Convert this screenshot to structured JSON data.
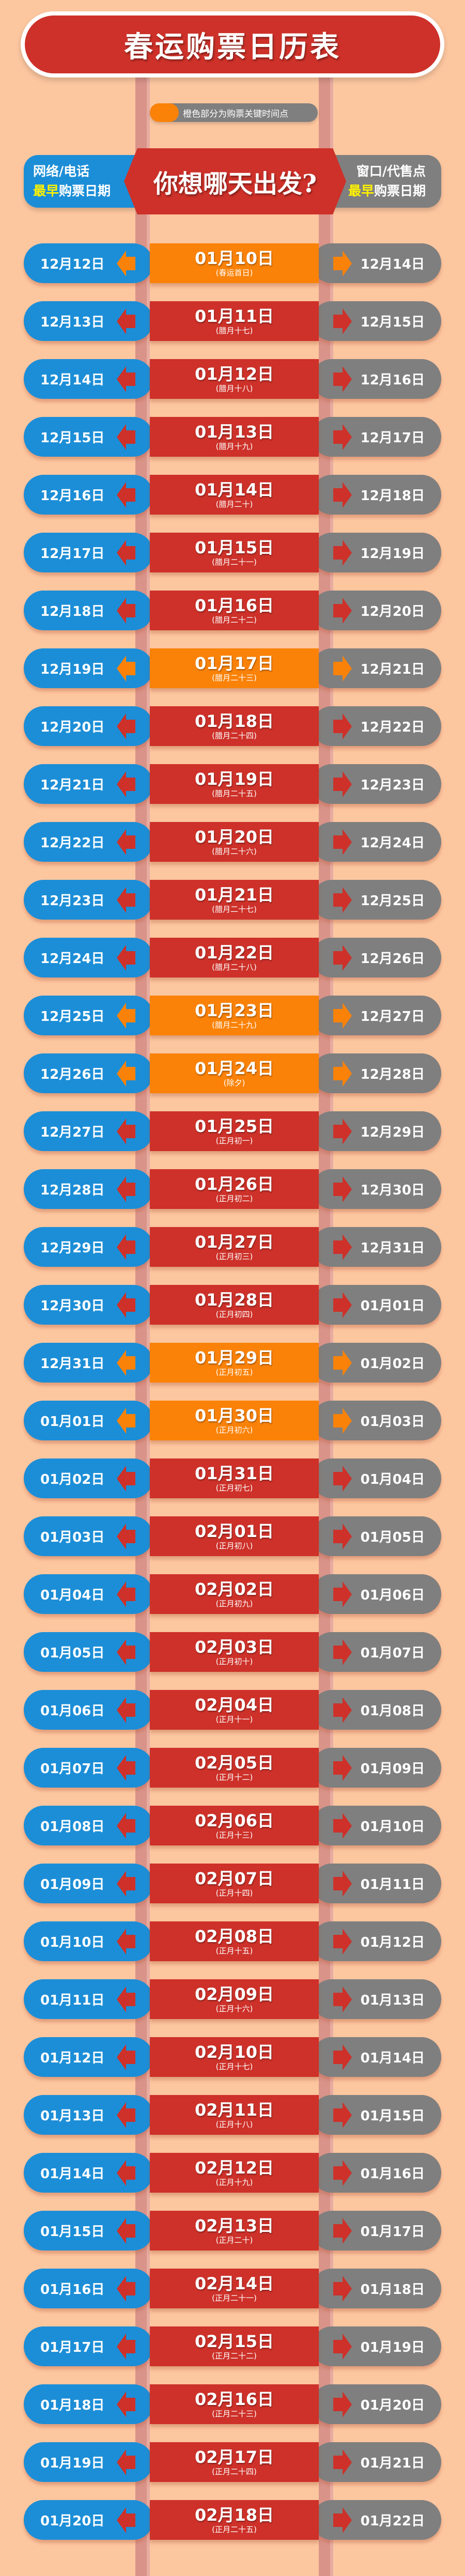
{
  "title": "春运购票日历表",
  "legend": {
    "text": "橙色部分为购票关键时间点",
    "color": "#fa8208"
  },
  "header": {
    "left_line1": "网络/电话",
    "left_line2_highlight": "最早",
    "left_line2_rest": "购票日期",
    "center": "你想哪天出发?",
    "right_line1": "窗口/代售点",
    "right_line2_highlight": "最早",
    "right_line2_rest": "购票日期"
  },
  "colors": {
    "background": "#fcc69f",
    "online": "#1c8ed7",
    "window": "#7f7f7f",
    "normal": "#cd3129",
    "key": "#fa8208"
  },
  "rows": [
    {
      "online": "12月12日",
      "date": "01月10日",
      "lunar": "(春运首日)",
      "window": "12月14日",
      "key": true
    },
    {
      "online": "12月13日",
      "date": "01月11日",
      "lunar": "(腊月十七)",
      "window": "12月15日",
      "key": false
    },
    {
      "online": "12月14日",
      "date": "01月12日",
      "lunar": "(腊月十八)",
      "window": "12月16日",
      "key": false
    },
    {
      "online": "12月15日",
      "date": "01月13日",
      "lunar": "(腊月十九)",
      "window": "12月17日",
      "key": false
    },
    {
      "online": "12月16日",
      "date": "01月14日",
      "lunar": "(腊月二十)",
      "window": "12月18日",
      "key": false
    },
    {
      "online": "12月17日",
      "date": "01月15日",
      "lunar": "(腊月二十一)",
      "window": "12月19日",
      "key": false
    },
    {
      "online": "12月18日",
      "date": "01月16日",
      "lunar": "(腊月二十二)",
      "window": "12月20日",
      "key": false
    },
    {
      "online": "12月19日",
      "date": "01月17日",
      "lunar": "(腊月二十三)",
      "window": "12月21日",
      "key": true
    },
    {
      "online": "12月20日",
      "date": "01月18日",
      "lunar": "(腊月二十四)",
      "window": "12月22日",
      "key": false
    },
    {
      "online": "12月21日",
      "date": "01月19日",
      "lunar": "(腊月二十五)",
      "window": "12月23日",
      "key": false
    },
    {
      "online": "12月22日",
      "date": "01月20日",
      "lunar": "(腊月二十六)",
      "window": "12月24日",
      "key": false
    },
    {
      "online": "12月23日",
      "date": "01月21日",
      "lunar": "(腊月二十七)",
      "window": "12月25日",
      "key": false
    },
    {
      "online": "12月24日",
      "date": "01月22日",
      "lunar": "(腊月二十八)",
      "window": "12月26日",
      "key": false
    },
    {
      "online": "12月25日",
      "date": "01月23日",
      "lunar": "(腊月二十九)",
      "window": "12月27日",
      "key": true
    },
    {
      "online": "12月26日",
      "date": "01月24日",
      "lunar": "(除夕)",
      "window": "12月28日",
      "key": true
    },
    {
      "online": "12月27日",
      "date": "01月25日",
      "lunar": "(正月初一)",
      "window": "12月29日",
      "key": false
    },
    {
      "online": "12月28日",
      "date": "01月26日",
      "lunar": "(正月初二)",
      "window": "12月30日",
      "key": false
    },
    {
      "online": "12月29日",
      "date": "01月27日",
      "lunar": "(正月初三)",
      "window": "12月31日",
      "key": false
    },
    {
      "online": "12月30日",
      "date": "01月28日",
      "lunar": "(正月初四)",
      "window": "01月01日",
      "key": false
    },
    {
      "online": "12月31日",
      "date": "01月29日",
      "lunar": "(正月初五)",
      "window": "01月02日",
      "key": true
    },
    {
      "online": "01月01日",
      "date": "01月30日",
      "lunar": "(正月初六)",
      "window": "01月03日",
      "key": true
    },
    {
      "online": "01月02日",
      "date": "01月31日",
      "lunar": "(正月初七)",
      "window": "01月04日",
      "key": false
    },
    {
      "online": "01月03日",
      "date": "02月01日",
      "lunar": "(正月初八)",
      "window": "01月05日",
      "key": false
    },
    {
      "online": "01月04日",
      "date": "02月02日",
      "lunar": "(正月初九)",
      "window": "01月06日",
      "key": false
    },
    {
      "online": "01月05日",
      "date": "02月03日",
      "lunar": "(正月初十)",
      "window": "01月07日",
      "key": false
    },
    {
      "online": "01月06日",
      "date": "02月04日",
      "lunar": "(正月十一)",
      "window": "01月08日",
      "key": false
    },
    {
      "online": "01月07日",
      "date": "02月05日",
      "lunar": "(正月十二)",
      "window": "01月09日",
      "key": false
    },
    {
      "online": "01月08日",
      "date": "02月06日",
      "lunar": "(正月十三)",
      "window": "01月10日",
      "key": false
    },
    {
      "online": "01月09日",
      "date": "02月07日",
      "lunar": "(正月十四)",
      "window": "01月11日",
      "key": false
    },
    {
      "online": "01月10日",
      "date": "02月08日",
      "lunar": "(正月十五)",
      "window": "01月12日",
      "key": false
    },
    {
      "online": "01月11日",
      "date": "02月09日",
      "lunar": "(正月十六)",
      "window": "01月13日",
      "key": false
    },
    {
      "online": "01月12日",
      "date": "02月10日",
      "lunar": "(正月十七)",
      "window": "01月14日",
      "key": false
    },
    {
      "online": "01月13日",
      "date": "02月11日",
      "lunar": "(正月十八)",
      "window": "01月15日",
      "key": false
    },
    {
      "online": "01月14日",
      "date": "02月12日",
      "lunar": "(正月十九)",
      "window": "01月16日",
      "key": false
    },
    {
      "online": "01月15日",
      "date": "02月13日",
      "lunar": "(正月二十)",
      "window": "01月17日",
      "key": false
    },
    {
      "online": "01月16日",
      "date": "02月14日",
      "lunar": "(正月二十一)",
      "window": "01月18日",
      "key": false
    },
    {
      "online": "01月17日",
      "date": "02月15日",
      "lunar": "(正月二十二)",
      "window": "01月19日",
      "key": false
    },
    {
      "online": "01月18日",
      "date": "02月16日",
      "lunar": "(正月二十三)",
      "window": "01月20日",
      "key": false
    },
    {
      "online": "01月19日",
      "date": "02月17日",
      "lunar": "(正月二十四)",
      "window": "01月21日",
      "key": false
    },
    {
      "online": "01月20日",
      "date": "02月18日",
      "lunar": "(正月二十五)",
      "window": "01月22日",
      "key": false
    }
  ]
}
